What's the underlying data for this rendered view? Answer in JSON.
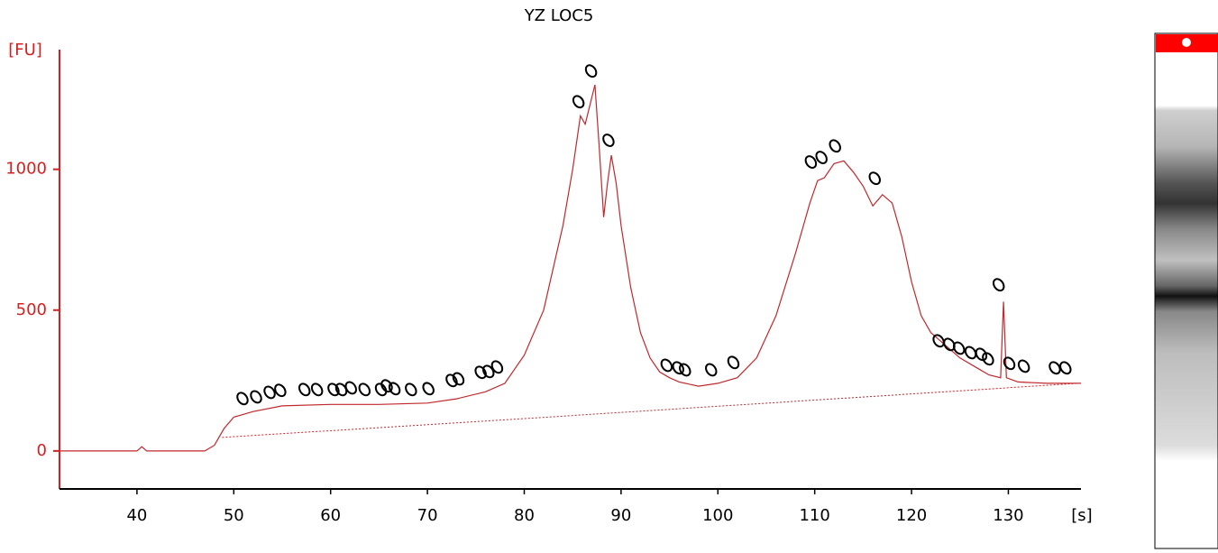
{
  "chart_data": {
    "type": "line",
    "title": "YZ LOC5",
    "ylabel": "[FU]",
    "xlabel": "[s]",
    "xlim": [
      32,
      137.5
    ],
    "ylim": [
      -135,
      1425
    ],
    "xticks": [
      40,
      50,
      60,
      70,
      80,
      90,
      100,
      110,
      120,
      130
    ],
    "yticks": [
      0,
      500,
      1000
    ],
    "series": [
      {
        "color": "#c0282d",
        "x": [
          32,
          40,
          40.5,
          41,
          47,
          48,
          49,
          50,
          52,
          55,
          60,
          65,
          70,
          73,
          76,
          78,
          80,
          82,
          84,
          85,
          85.8,
          86.3,
          86.8,
          87.3,
          87.7,
          88.2,
          88.6,
          89,
          89.5,
          90,
          91,
          92,
          93,
          94,
          95,
          96,
          98,
          100,
          102,
          104,
          106,
          108,
          109.5,
          110.3,
          111,
          112,
          113,
          114,
          115,
          116,
          117,
          118,
          119,
          120,
          121,
          122,
          123,
          125,
          127,
          128,
          129.2,
          129.5,
          129.8,
          131,
          134,
          137.5
        ],
        "values": [
          0,
          0,
          15,
          0,
          0,
          20,
          80,
          120,
          140,
          160,
          165,
          165,
          170,
          185,
          210,
          240,
          340,
          500,
          800,
          1000,
          1190,
          1160,
          1230,
          1300,
          1100,
          830,
          950,
          1050,
          950,
          800,
          580,
          420,
          330,
          280,
          260,
          245,
          230,
          240,
          260,
          330,
          480,
          700,
          880,
          960,
          970,
          1020,
          1030,
          990,
          940,
          870,
          910,
          880,
          760,
          600,
          480,
          420,
          390,
          330,
          290,
          270,
          260,
          530,
          260,
          245,
          240,
          240
        ]
      }
    ],
    "baseline": {
      "x": [
        48.8,
        78.7,
        137.2
      ],
      "values": [
        48,
        112,
        240
      ]
    },
    "markers": {
      "x": [
        50.9,
        52.3,
        53.7,
        54.8,
        57.3,
        58.6,
        60.3,
        61.1,
        62.1,
        63.5,
        65.2,
        65.8,
        66.6,
        68.3,
        70.1,
        72.5,
        73.2,
        75.5,
        76.3,
        77.2,
        85.6,
        86.9,
        88.7,
        94.7,
        95.9,
        96.6,
        99.3,
        101.6,
        109.6,
        110.7,
        112.1,
        116.2,
        122.8,
        123.9,
        124.9,
        126.1,
        127.2,
        127.9,
        129.0,
        130.1,
        131.6,
        134.8,
        135.9
      ],
      "values": [
        186,
        192,
        208,
        215,
        218,
        218,
        218,
        218,
        224,
        218,
        218,
        231,
        221,
        218,
        221,
        250,
        256,
        279,
        282,
        298,
        1240,
        1349,
        1103,
        304,
        295,
        288,
        288,
        314,
        1026,
        1042,
        1083,
        968,
        391,
        378,
        365,
        349,
        343,
        327,
        590,
        311,
        301,
        295,
        295
      ]
    }
  }
}
